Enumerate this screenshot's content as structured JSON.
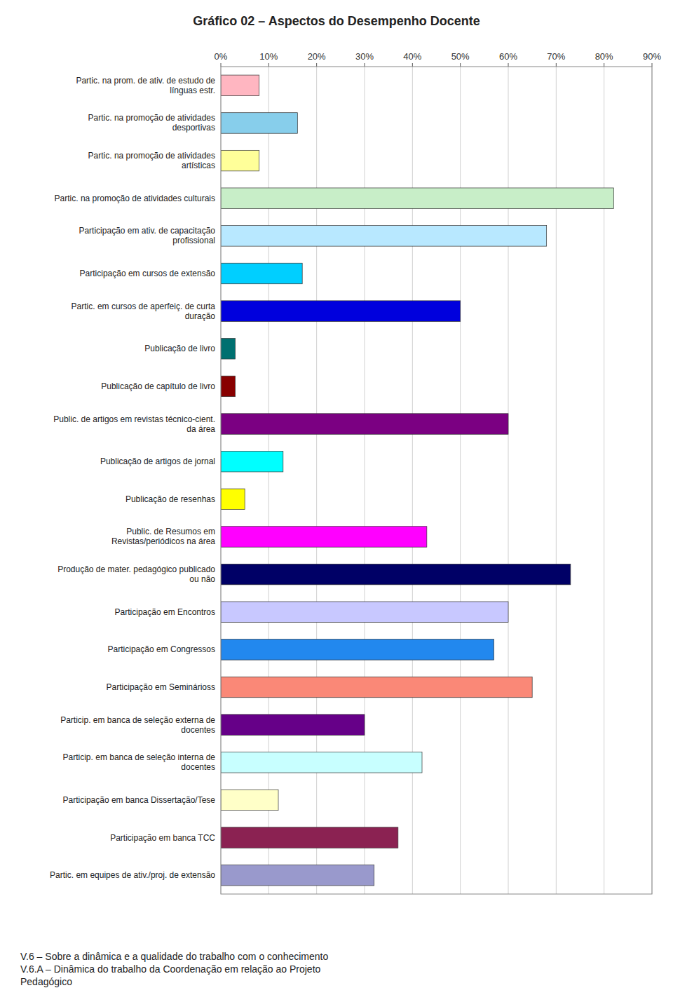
{
  "chart_data": {
    "type": "bar",
    "orientation": "horizontal",
    "title": "Gráfico 02 – Aspectos do Desempenho Docente",
    "annotations": [
      "V.6 – Sobre a dinâmica e a qualidade do trabalho com o conhecimento\nV.6.A – Dinâmica do trabalho da Coordenação em relação ao Projeto\nPedagógico"
    ],
    "categories": [
      "Partic. na prom. de ativ. de estudo de\nlínguas estr.",
      "Partic. na promoção de atividades\ndesportivas",
      "Partic. na promoção de atividades\nartísticas",
      "Partic. na promoção de atividades culturais",
      "Participação em ativ. de capacitação\nprofissional",
      "Participação em cursos de extensão",
      "Partic. em cursos de aperfeiç. de curta\nduração",
      "Publicação de livro",
      "Publicação de capítulo de livro",
      "Public. de artigos em revistas técnico-cient.\nda área",
      "Publicação de artigos de jornal",
      "Publicação de resenhas",
      "Public. de Resumos em\nRevistas/periódicos na área",
      "Produção de mater. pedagógico publicado\nou não",
      "Participação em Encontros",
      "Participação em Congressos",
      "Participação em Seminárioss",
      "Particip. em banca de seleção externa de\ndocentes",
      "Particip. em banca de seleção interna de\ndocentes",
      "Participação em banca Dissertação/Tese",
      "Participação em banca TCC",
      "Partic. em equipes de ativ./proj. de extensão"
    ],
    "values": [
      8,
      16,
      8,
      82,
      68,
      17,
      50,
      3,
      3,
      60,
      13,
      5,
      43,
      73,
      60,
      57,
      65,
      30,
      42,
      12,
      37,
      32
    ],
    "colors": [
      "#FFB6C1",
      "#87CEEB",
      "#FFFF99",
      "#C8EEC8",
      "#B8E8FF",
      "#00CFFF",
      "#0000DD",
      "#007070",
      "#880000",
      "#7B0082",
      "#00FFFF",
      "#FFFF00",
      "#FF00FF",
      "#000066",
      "#C8C8FF",
      "#2288EE",
      "#FA8877",
      "#660088",
      "#C8FFFF",
      "#FFFFC8",
      "#8B2252",
      "#9999CC"
    ],
    "xlim": [
      0,
      90
    ],
    "xticks": [
      {
        "value": 0,
        "label": "0%"
      },
      {
        "value": 10,
        "label": "10%"
      },
      {
        "value": 20,
        "label": "20%"
      },
      {
        "value": 30,
        "label": "30%"
      },
      {
        "value": 40,
        "label": "40%"
      },
      {
        "value": 50,
        "label": "50%"
      },
      {
        "value": 60,
        "label": "60%"
      },
      {
        "value": 70,
        "label": "70%"
      },
      {
        "value": 80,
        "label": "80%"
      },
      {
        "value": 90,
        "label": "90%"
      }
    ],
    "grid": true
  }
}
